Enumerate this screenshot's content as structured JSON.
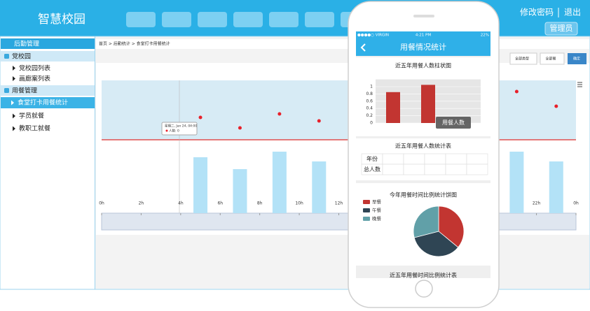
{
  "header": {
    "title": "智慧校园",
    "links": [
      "修改密码",
      "退出"
    ],
    "user": "管理员"
  },
  "sidebar": {
    "heading": "后勤管理",
    "groups": [
      {
        "title": "党校园",
        "items": [
          "党校园列表",
          "画廊案列表"
        ]
      },
      {
        "title": "用餐管理",
        "items": [
          "食堂打卡用餐统计",
          "学员就餐",
          "教职工就餐"
        ]
      }
    ]
  },
  "breadcrumb": "首页 > 后勤统计 > 食堂打卡用餐统计",
  "filters": [
    "全部类型",
    "全部餐"
  ],
  "confirm": "确定",
  "dashboard_chart": {
    "type": "bar",
    "xlim": [
      0,
      24
    ],
    "ylim": [
      0,
      190
    ],
    "xticks": [
      {
        "value": 0,
        "label": "0h"
      },
      {
        "value": 2,
        "label": "2h"
      },
      {
        "value": 4,
        "label": "4h"
      },
      {
        "value": 6,
        "label": "6h"
      },
      {
        "value": 8,
        "label": "8h"
      },
      {
        "value": 10,
        "label": "10h"
      },
      {
        "value": 12,
        "label": "12h"
      },
      {
        "value": 22,
        "label": "22h"
      },
      {
        "value": 24,
        "label": "0h"
      }
    ],
    "bars": {
      "x": [
        5,
        7,
        9,
        11,
        21,
        23
      ],
      "values": [
        80,
        63,
        88,
        74,
        88,
        74
      ],
      "color": "#b3e2f7"
    },
    "points": {
      "x": [
        5,
        7,
        9,
        11,
        21,
        23
      ],
      "values": [
        137,
        122,
        142,
        132,
        174,
        153
      ],
      "color": "#e8202a"
    },
    "tooltip": {
      "title": "星期二, Jan 24, 04:00",
      "text": "人数: 0"
    }
  },
  "phone": {
    "status": {
      "carrier": "●●●●○ VIRGIN",
      "time": "4:21 PM",
      "battery": "22%"
    },
    "title": "用餐情况统计",
    "bar_chart": {
      "type": "bar",
      "title": "近五年用餐人数柱状图",
      "categories": [
        null,
        null,
        null
      ],
      "values": [
        0.85,
        1.05,
        null
      ],
      "color": "#c23531",
      "ylim": [
        0,
        1.2
      ],
      "yticks": [
        0,
        0.2,
        0.4,
        0.6,
        0.8,
        1
      ],
      "grid": true,
      "tooltip": "用餐人数"
    },
    "table": {
      "title": "近五年用餐人数统计表",
      "row_headers": [
        "年份",
        "总人数"
      ]
    },
    "pie_chart": {
      "type": "pie",
      "title": "今年用餐时间比例统计饼图",
      "categories": [
        "早餐",
        "午餐",
        "晚餐"
      ],
      "values": [
        36,
        35,
        29
      ],
      "colors": [
        "#c23531",
        "#2f4554",
        "#61a0a8"
      ]
    },
    "next_title": "近五年用餐时间比例统计表"
  }
}
